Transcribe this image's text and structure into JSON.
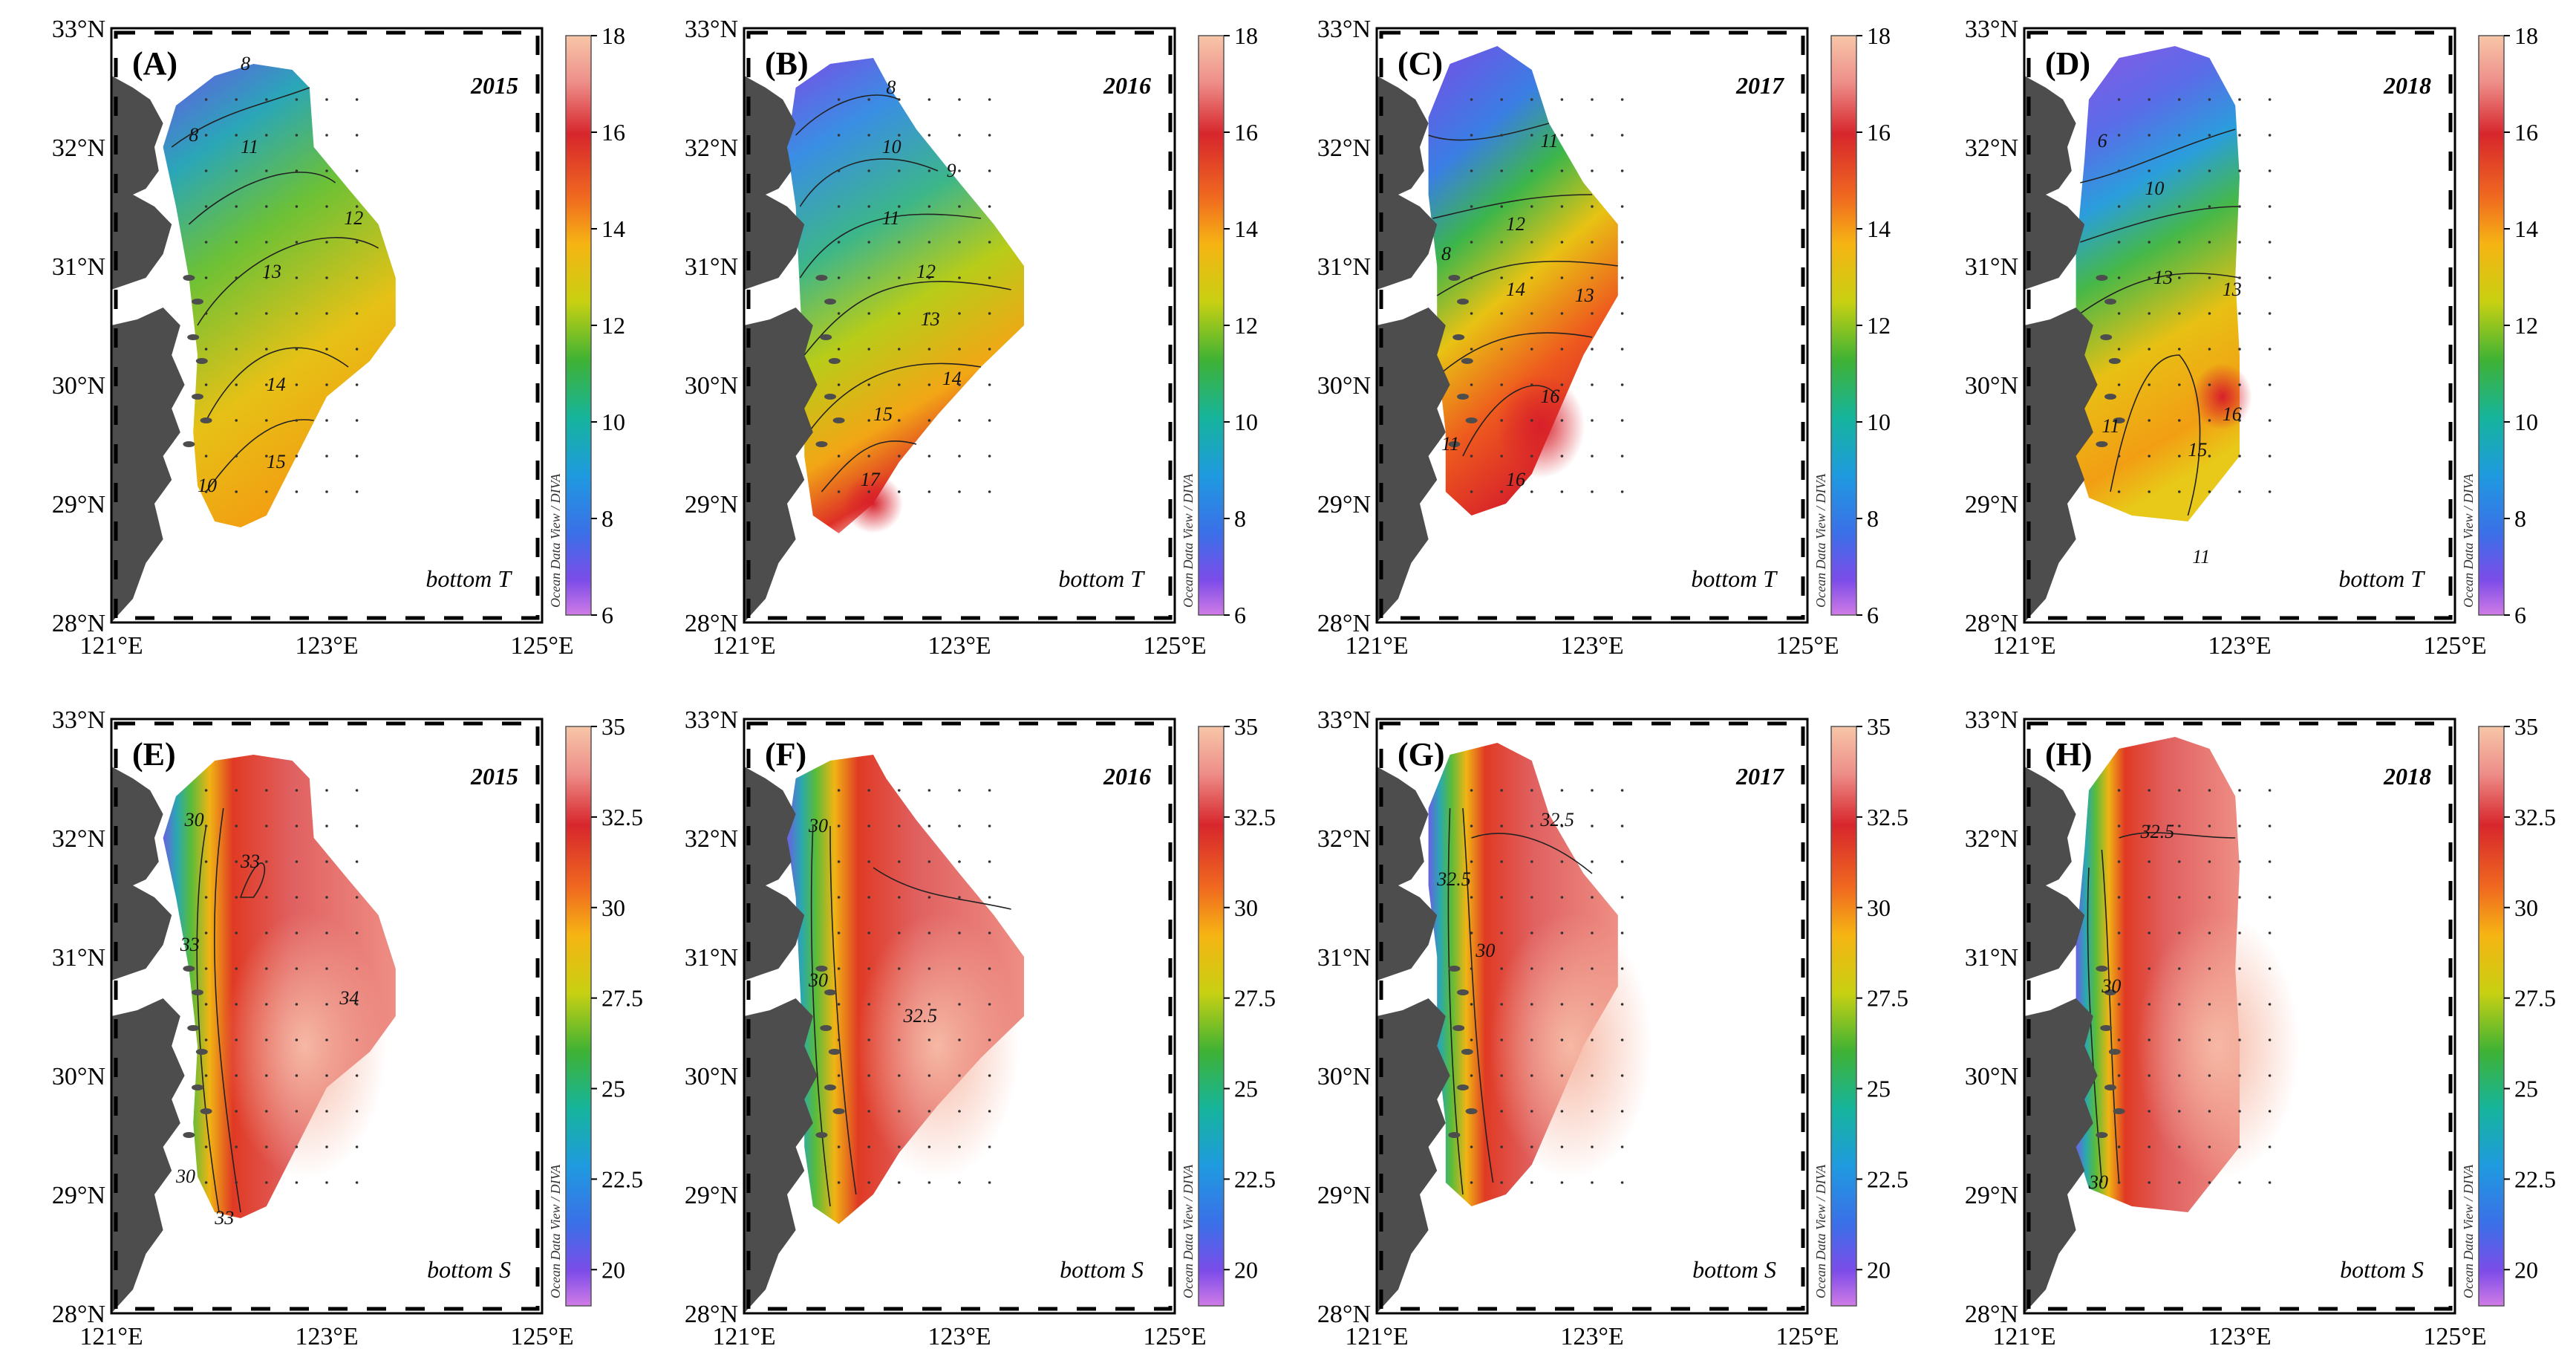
{
  "axes": {
    "lat_ticks": [
      "33°N",
      "32°N",
      "31°N",
      "30°N",
      "29°N",
      "28°N"
    ],
    "lon_ticks": [
      "121°E",
      "123°E",
      "125°E"
    ],
    "lat_range": [
      28,
      33
    ],
    "lon_range": [
      121,
      125
    ]
  },
  "colorbar_credit": "Ocean Data View / DIVA",
  "colorbars": {
    "T": {
      "min": 6,
      "max": 18,
      "labels": [
        "18",
        "16",
        "14",
        "12",
        "10",
        "8",
        "6"
      ]
    },
    "S": {
      "min": 19,
      "max": 35,
      "labels": [
        "35",
        "32.5",
        "30",
        "27.5",
        "25",
        "22.5",
        "20"
      ]
    }
  },
  "panels": [
    {
      "letter": "(A)",
      "year": "2015",
      "variable": "bottom T",
      "field": "T",
      "contour_labels": [
        "8",
        "8",
        "11",
        "12",
        "13",
        "14",
        "15",
        "10"
      ]
    },
    {
      "letter": "(B)",
      "year": "2016",
      "variable": "bottom T",
      "field": "T",
      "contour_labels": [
        "8",
        "10",
        "9",
        "11",
        "12",
        "13",
        "14",
        "15",
        "17"
      ]
    },
    {
      "letter": "(C)",
      "year": "2017",
      "variable": "bottom T",
      "field": "T",
      "contour_labels": [
        "11",
        "12",
        "14",
        "13",
        "16",
        "16",
        "8",
        "11"
      ]
    },
    {
      "letter": "(D)",
      "year": "2018",
      "variable": "bottom T",
      "field": "T",
      "contour_labels": [
        "6",
        "10",
        "13",
        "13",
        "16",
        "15",
        "11",
        "11"
      ]
    },
    {
      "letter": "(E)",
      "year": "2015",
      "variable": "bottom S",
      "field": "S",
      "contour_labels": [
        "33",
        "34",
        "30",
        "33",
        "33",
        "30"
      ]
    },
    {
      "letter": "(F)",
      "year": "2016",
      "variable": "bottom S",
      "field": "S",
      "contour_labels": [
        "30",
        "32.5",
        "30"
      ]
    },
    {
      "letter": "(G)",
      "year": "2017",
      "variable": "bottom S",
      "field": "S",
      "contour_labels": [
        "32.5",
        "30",
        "32.5"
      ]
    },
    {
      "letter": "(H)",
      "year": "2018",
      "variable": "bottom S",
      "field": "S",
      "contour_labels": [
        "32.5",
        "30",
        "30"
      ]
    }
  ]
}
